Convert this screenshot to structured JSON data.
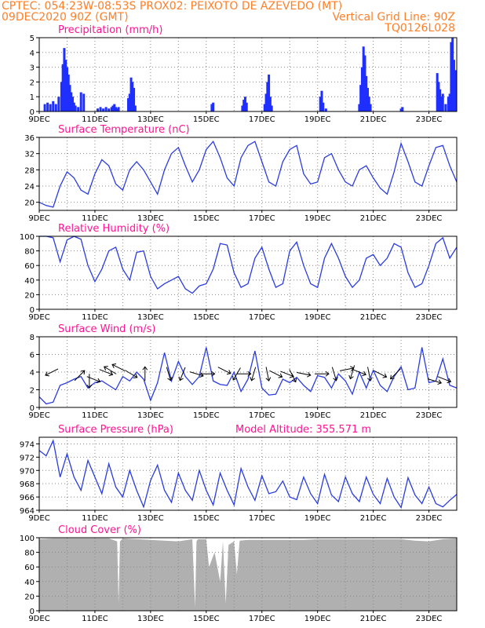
{
  "header": {
    "line1_left": "CPTEC:   054:23W-08:53S   PROX02: PEIXOTO DE AZEVEDO (MT)",
    "line2_left": "09DEC2020 90Z (GMT)",
    "line2_right": "Vertical Grid Line: 90Z",
    "line3_right": "TQ0126L028"
  },
  "x_axis": {
    "labels": [
      "9DEC",
      "11DEC",
      "13DEC",
      "15DEC",
      "17DEC",
      "19DEC",
      "21DEC",
      "23DEC"
    ],
    "range_days": [
      0,
      15
    ]
  },
  "chart_data": [
    {
      "type": "bar",
      "title": "Precipitation (mm/h)",
      "ylim": [
        0,
        5
      ],
      "yticks": [
        0,
        1,
        2,
        3,
        4,
        5
      ],
      "bars": [
        [
          0.2,
          0.5
        ],
        [
          0.3,
          0.6
        ],
        [
          0.4,
          0.5
        ],
        [
          0.5,
          0.7
        ],
        [
          0.6,
          0.5
        ],
        [
          0.7,
          1.0
        ],
        [
          0.8,
          2.0
        ],
        [
          0.85,
          3.2
        ],
        [
          0.9,
          4.3
        ],
        [
          0.95,
          3.5
        ],
        [
          1.0,
          3.0
        ],
        [
          1.05,
          2.5
        ],
        [
          1.1,
          1.8
        ],
        [
          1.15,
          1.3
        ],
        [
          1.2,
          1.0
        ],
        [
          1.25,
          0.6
        ],
        [
          1.3,
          0.4
        ],
        [
          1.4,
          0.3
        ],
        [
          1.5,
          1.3
        ],
        [
          1.6,
          1.2
        ],
        [
          2.1,
          0.2
        ],
        [
          2.2,
          0.3
        ],
        [
          2.3,
          0.2
        ],
        [
          2.4,
          0.3
        ],
        [
          2.5,
          0.2
        ],
        [
          2.6,
          0.3
        ],
        [
          2.65,
          0.4
        ],
        [
          2.7,
          0.5
        ],
        [
          2.75,
          0.3
        ],
        [
          2.8,
          0.2
        ],
        [
          2.85,
          0.3
        ],
        [
          3.2,
          0.9
        ],
        [
          3.25,
          1.2
        ],
        [
          3.3,
          2.3
        ],
        [
          3.35,
          2.0
        ],
        [
          3.4,
          1.6
        ],
        [
          3.45,
          0.4
        ],
        [
          6.2,
          0.5
        ],
        [
          6.25,
          0.6
        ],
        [
          7.3,
          0.4
        ],
        [
          7.35,
          0.8
        ],
        [
          7.4,
          1.0
        ],
        [
          7.45,
          0.6
        ],
        [
          8.1,
          0.5
        ],
        [
          8.15,
          1.2
        ],
        [
          8.2,
          2.0
        ],
        [
          8.25,
          2.5
        ],
        [
          8.3,
          1.0
        ],
        [
          8.35,
          0.4
        ],
        [
          10.1,
          1.0
        ],
        [
          10.15,
          1.4
        ],
        [
          10.2,
          0.6
        ],
        [
          10.3,
          0.2
        ],
        [
          11.5,
          0.5
        ],
        [
          11.55,
          1.8
        ],
        [
          11.6,
          3.0
        ],
        [
          11.65,
          4.4
        ],
        [
          11.7,
          3.8
        ],
        [
          11.75,
          2.4
        ],
        [
          11.8,
          1.6
        ],
        [
          11.85,
          1.0
        ],
        [
          11.9,
          0.5
        ],
        [
          13.0,
          0.2
        ],
        [
          13.05,
          0.3
        ],
        [
          14.3,
          2.6
        ],
        [
          14.35,
          2.0
        ],
        [
          14.4,
          1.5
        ],
        [
          14.45,
          1.0
        ],
        [
          14.5,
          1.2
        ],
        [
          14.6,
          0.5
        ],
        [
          14.7,
          1.0
        ],
        [
          14.75,
          1.2
        ],
        [
          14.8,
          4.7
        ],
        [
          14.85,
          5.0
        ],
        [
          14.9,
          3.5
        ],
        [
          14.95,
          2.8
        ]
      ]
    },
    {
      "type": "line",
      "title": "Surface Temperature (nC)",
      "ylim": [
        18,
        36
      ],
      "yticks": [
        20,
        24,
        28,
        32,
        36
      ],
      "x": [
        0,
        0.25,
        0.5,
        0.75,
        1.0,
        1.25,
        1.5,
        1.75,
        2.0,
        2.25,
        2.5,
        2.75,
        3.0,
        3.25,
        3.5,
        3.75,
        4.0,
        4.25,
        4.5,
        4.75,
        5.0,
        5.25,
        5.5,
        5.75,
        6.0,
        6.25,
        6.5,
        6.75,
        7.0,
        7.25,
        7.5,
        7.75,
        8.0,
        8.25,
        8.5,
        8.75,
        9.0,
        9.25,
        9.5,
        9.75,
        10.0,
        10.25,
        10.5,
        10.75,
        11.0,
        11.25,
        11.5,
        11.75,
        12.0,
        12.25,
        12.5,
        12.75,
        13.0,
        13.25,
        13.5,
        13.75,
        14.0,
        14.25,
        14.5,
        14.75,
        15.0
      ],
      "series": [
        {
          "values": [
            20,
            19.2,
            18.8,
            24,
            27.5,
            26,
            23,
            22,
            27,
            30.5,
            29,
            24.5,
            23,
            28,
            30,
            28,
            25,
            22,
            28,
            32,
            33.5,
            29,
            25,
            28,
            33,
            35,
            31,
            26,
            24,
            31,
            34,
            35,
            30,
            25,
            24,
            30,
            33,
            34,
            27,
            24.5,
            25,
            31,
            32,
            28,
            25,
            24,
            28,
            29,
            26,
            23.5,
            22,
            27.5,
            34.5,
            30,
            25,
            24,
            29,
            33.5,
            34,
            29,
            25
          ]
        }
      ]
    },
    {
      "type": "line",
      "title": "Relative Humidity (%)",
      "ylim": [
        0,
        100
      ],
      "yticks": [
        0,
        20,
        40,
        60,
        80,
        100
      ],
      "x": [
        0,
        0.25,
        0.5,
        0.75,
        1.0,
        1.25,
        1.5,
        1.75,
        2.0,
        2.25,
        2.5,
        2.75,
        3.0,
        3.25,
        3.5,
        3.75,
        4.0,
        4.25,
        4.5,
        4.75,
        5.0,
        5.25,
        5.5,
        5.75,
        6.0,
        6.25,
        6.5,
        6.75,
        7.0,
        7.25,
        7.5,
        7.75,
        8.0,
        8.25,
        8.5,
        8.75,
        9.0,
        9.25,
        9.5,
        9.75,
        10.0,
        10.25,
        10.5,
        10.75,
        11.0,
        11.25,
        11.5,
        11.75,
        12.0,
        12.25,
        12.5,
        12.75,
        13.0,
        13.25,
        13.5,
        13.75,
        14.0,
        14.25,
        14.5,
        14.75,
        15.0
      ],
      "series": [
        {
          "values": [
            100,
            100,
            98,
            65,
            95,
            100,
            96,
            60,
            38,
            55,
            80,
            85,
            55,
            40,
            78,
            80,
            45,
            28,
            35,
            40,
            45,
            28,
            22,
            32,
            35,
            55,
            90,
            88,
            50,
            30,
            35,
            70,
            85,
            55,
            30,
            35,
            80,
            92,
            60,
            35,
            30,
            70,
            90,
            70,
            45,
            30,
            40,
            70,
            75,
            60,
            70,
            90,
            85,
            50,
            30,
            35,
            60,
            90,
            98,
            70,
            85
          ]
        }
      ]
    },
    {
      "type": "line",
      "title": "Surface Wind (m/s)",
      "ylim": [
        0,
        8
      ],
      "yticks": [
        0,
        2,
        4,
        6,
        8
      ],
      "x": [
        0,
        0.25,
        0.5,
        0.75,
        1.0,
        1.25,
        1.5,
        1.75,
        2.0,
        2.25,
        2.5,
        2.75,
        3.0,
        3.25,
        3.5,
        3.75,
        4.0,
        4.25,
        4.5,
        4.75,
        5.0,
        5.25,
        5.5,
        5.75,
        6.0,
        6.25,
        6.5,
        6.75,
        7.0,
        7.25,
        7.5,
        7.75,
        8.0,
        8.25,
        8.5,
        8.75,
        9.0,
        9.25,
        9.5,
        9.75,
        10.0,
        10.25,
        10.5,
        10.75,
        11.0,
        11.25,
        11.5,
        11.75,
        12.0,
        12.25,
        12.5,
        12.75,
        13.0,
        13.25,
        13.5,
        13.75,
        14.0,
        14.25,
        14.5,
        14.75,
        15.0
      ],
      "series": [
        {
          "values": [
            1.2,
            0.4,
            0.6,
            2.5,
            2.8,
            3.2,
            3.5,
            2.2,
            2.8,
            3.0,
            2.5,
            2.0,
            3.5,
            3.0,
            4.0,
            3.2,
            0.8,
            2.8,
            6.2,
            3.0,
            5.2,
            3.5,
            2.6,
            3.5,
            6.8,
            3.0,
            2.6,
            2.5,
            4.0,
            1.8,
            3.2,
            6.4,
            2.2,
            1.4,
            1.5,
            3.2,
            2.8,
            3.4,
            2.5,
            1.8,
            3.6,
            3.4,
            2.2,
            3.8,
            3.0,
            1.5,
            4.0,
            2.2,
            4.2,
            2.5,
            1.8,
            3.5,
            4.6,
            2.0,
            2.2,
            6.8,
            2.8,
            3.0,
            5.5,
            2.5,
            2.2
          ]
        }
      ],
      "vectors": [
        [
          0.45,
          4.0,
          -1,
          0.5
        ],
        [
          1.45,
          3.6,
          1,
          -1
        ],
        [
          1.8,
          3.0,
          0,
          1
        ],
        [
          1.95,
          3.2,
          1,
          0.4
        ],
        [
          2.4,
          4.0,
          1,
          0.4
        ],
        [
          2.55,
          4.2,
          -1,
          -0.6
        ],
        [
          2.85,
          4.5,
          -1,
          -0.5
        ],
        [
          3.3,
          3.8,
          1,
          0.6
        ],
        [
          3.8,
          3.8,
          0,
          -1
        ],
        [
          4.65,
          3.8,
          0.3,
          1
        ],
        [
          5.15,
          3.8,
          -0.4,
          1
        ],
        [
          5.65,
          3.8,
          1,
          0.3
        ],
        [
          6.05,
          3.8,
          1,
          0
        ],
        [
          6.65,
          4.2,
          1,
          0.5
        ],
        [
          7.1,
          3.8,
          -0.6,
          1
        ],
        [
          7.35,
          3.8,
          1,
          0
        ],
        [
          7.7,
          3.8,
          -0.3,
          1
        ],
        [
          8.2,
          3.8,
          0.2,
          1
        ],
        [
          8.5,
          3.8,
          1,
          0.5
        ],
        [
          8.9,
          3.8,
          1,
          0.4
        ],
        [
          9.1,
          3.6,
          0.5,
          1
        ],
        [
          9.5,
          3.8,
          1,
          0.2
        ],
        [
          10.15,
          3.8,
          1,
          0
        ],
        [
          10.6,
          3.8,
          0.3,
          1
        ],
        [
          11.05,
          4.3,
          1,
          -0.2
        ],
        [
          11.25,
          4.0,
          -0.3,
          1
        ],
        [
          11.5,
          4.0,
          1,
          0.4
        ],
        [
          11.85,
          3.8,
          0.2,
          1
        ],
        [
          12.25,
          3.8,
          1,
          0.5
        ],
        [
          12.8,
          3.8,
          -1,
          1
        ],
        [
          14.2,
          3.0,
          1,
          0.3
        ],
        [
          14.55,
          3.2,
          1,
          0.4
        ]
      ]
    },
    {
      "type": "line",
      "title": "Surface Pressure (hPa)",
      "annotation": "Model Altitude: 355.571 m",
      "ylim": [
        964,
        975
      ],
      "yticks": [
        964,
        966,
        968,
        970,
        972,
        974
      ],
      "x": [
        0,
        0.25,
        0.5,
        0.75,
        1.0,
        1.25,
        1.5,
        1.75,
        2.0,
        2.25,
        2.5,
        2.75,
        3.0,
        3.25,
        3.5,
        3.75,
        4.0,
        4.25,
        4.5,
        4.75,
        5.0,
        5.25,
        5.5,
        5.75,
        6.0,
        6.25,
        6.5,
        6.75,
        7.0,
        7.25,
        7.5,
        7.75,
        8.0,
        8.25,
        8.5,
        8.75,
        9.0,
        9.25,
        9.5,
        9.75,
        10.0,
        10.25,
        10.5,
        10.75,
        11.0,
        11.25,
        11.5,
        11.75,
        12.0,
        12.25,
        12.5,
        12.75,
        13.0,
        13.25,
        13.5,
        13.75,
        14.0,
        14.25,
        14.5,
        14.75,
        15.0
      ],
      "series": [
        {
          "values": [
            973,
            972.2,
            974.5,
            969,
            972.5,
            969,
            967,
            971.5,
            969,
            966.5,
            971,
            967.5,
            966,
            970,
            967,
            964.5,
            968.5,
            970.8,
            967,
            965.2,
            969.6,
            967,
            965.5,
            970,
            967,
            964.8,
            969.6,
            967,
            964.8,
            970.3,
            967.5,
            965.5,
            969.2,
            966.5,
            966.8,
            968.4,
            966,
            965.6,
            969,
            966.5,
            965,
            969.4,
            966.3,
            965.3,
            969,
            966.5,
            965.3,
            969,
            966.4,
            965,
            968.8,
            966,
            964.4,
            968.9,
            966.3,
            965,
            967.5,
            965,
            964.5,
            965.5,
            966.4
          ]
        }
      ]
    },
    {
      "type": "area",
      "title": "Cloud Cover (%)",
      "ylim": [
        0,
        100
      ],
      "yticks": [
        0,
        20,
        40,
        60,
        80,
        100
      ],
      "x": [
        0,
        0.5,
        1.0,
        1.5,
        2.0,
        2.5,
        2.8,
        2.85,
        2.9,
        3.0,
        3.5,
        4.0,
        4.5,
        5.0,
        5.5,
        5.6,
        5.65,
        5.7,
        6.0,
        6.1,
        6.2,
        6.3,
        6.5,
        6.6,
        6.7,
        6.8,
        7.0,
        7.1,
        7.2,
        7.5,
        8.0,
        8.5,
        9.0,
        9.5,
        10.0,
        10.5,
        11.0,
        11.5,
        12.0,
        12.5,
        13.0,
        13.5,
        14.0,
        14.5,
        15.0
      ],
      "series": [
        {
          "values": [
            98,
            99,
            99,
            99,
            99,
            99,
            95,
            10,
            95,
            99,
            98,
            97,
            96,
            95,
            98,
            5,
            95,
            98,
            98,
            60,
            70,
            80,
            40,
            95,
            10,
            90,
            95,
            50,
            96,
            97,
            97,
            97,
            97,
            97,
            98,
            98,
            98,
            98,
            98,
            98,
            98,
            96,
            95,
            98,
            99
          ]
        }
      ]
    }
  ]
}
